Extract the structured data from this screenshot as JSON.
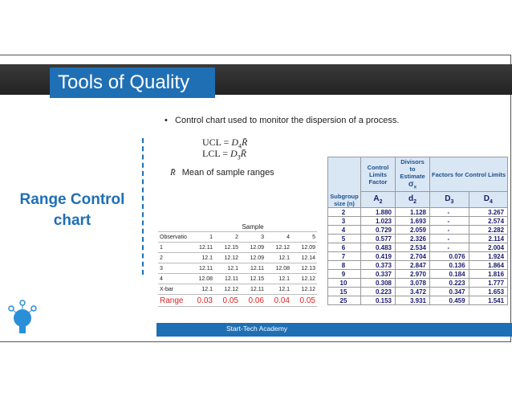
{
  "header": {
    "title": "Tools of Quality"
  },
  "side_title": "Range Control chart",
  "bullet": "Control chart used to monitor the dispersion of a process.",
  "formulas": [
    {
      "label": "UCL =",
      "symbol": "D",
      "subscript": "4",
      "variable": "R̄"
    },
    {
      "label": "LCL =",
      "symbol": "D",
      "subscript": "3",
      "variable": "R̄"
    }
  ],
  "legend": {
    "symbol": "R̄",
    "text": "Mean of sample ranges"
  },
  "sample_table": {
    "group_header": "Sample",
    "columns": [
      "Observatio",
      "1",
      "2",
      "3",
      "4",
      "5"
    ],
    "rows": [
      [
        "1",
        "12.11",
        "12.15",
        "12.09",
        "12.12",
        "12.09"
      ],
      [
        "2",
        "12.1",
        "12.12",
        "12.09",
        "12.1",
        "12.14"
      ],
      [
        "3",
        "12.11",
        "12.1",
        "12.11",
        "12.08",
        "12.13"
      ],
      [
        "4",
        "12.08",
        "12.11",
        "12.15",
        "12.1",
        "12.12"
      ],
      [
        "X-bar",
        "12.1",
        "12.12",
        "12.11",
        "12.1",
        "12.12"
      ],
      [
        "Range",
        "0.03",
        "0.05",
        "0.06",
        "0.04",
        "0.05"
      ]
    ]
  },
  "factor_table": {
    "headers": {
      "n": "Subgroup size (n)",
      "control": "Control Limits Factor",
      "divisors": "Divisors to Estimate",
      "divisors_symbol": "σ",
      "divisors_sub": "x",
      "factors": "Factors for Control Limits"
    },
    "subheaders": [
      {
        "symbol": "A",
        "sub": "2"
      },
      {
        "symbol": "d",
        "sub": "2"
      },
      {
        "symbol": "D",
        "sub": "3"
      },
      {
        "symbol": "D",
        "sub": "4"
      }
    ],
    "rows": [
      [
        "2",
        "1.880",
        "1.128",
        "-",
        "3.267"
      ],
      [
        "3",
        "1.023",
        "1.693",
        "-",
        "2.574"
      ],
      [
        "4",
        "0.729",
        "2.059",
        "-",
        "2.282"
      ],
      [
        "5",
        "0.577",
        "2.326",
        "-",
        "2.114"
      ],
      [
        "6",
        "0.483",
        "2.534",
        "-",
        "2.004"
      ],
      [
        "7",
        "0.419",
        "2.704",
        "0.076",
        "1.924"
      ],
      [
        "8",
        "0.373",
        "2.847",
        "0.136",
        "1.864"
      ],
      [
        "9",
        "0.337",
        "2.970",
        "0.184",
        "1.816"
      ],
      [
        "10",
        "0.308",
        "3.078",
        "0.223",
        "1.777"
      ],
      [
        "15",
        "0.223",
        "3.472",
        "0.347",
        "1.653"
      ],
      [
        "25",
        "0.153",
        "3.931",
        "0.459",
        "1.541"
      ]
    ]
  },
  "footer": "Start-Tech Academy"
}
